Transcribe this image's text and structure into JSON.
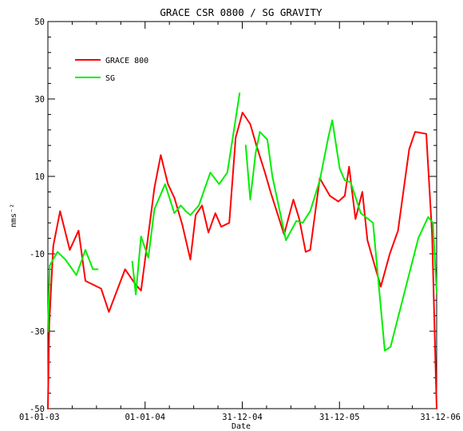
{
  "chart_data": {
    "type": "line",
    "title": "GRACE CSR 0800 / SG GRAVITY",
    "xlabel": "Date",
    "ylabel": "nms⁻²",
    "x_range": [
      "2003-01-01",
      "2006-12-31"
    ],
    "ylim": [
      -50,
      50
    ],
    "x_ticks": [
      {
        "label": "01-01-03",
        "date": "2003-01-01"
      },
      {
        "label": "01-01-04",
        "date": "2004-01-01"
      },
      {
        "label": "31-12-04",
        "date": "2004-12-31"
      },
      {
        "label": "31-12-05",
        "date": "2005-12-31"
      },
      {
        "label": "31-12-06",
        "date": "2006-12-31"
      }
    ],
    "y_ticks": [
      50,
      30,
      10,
      -10,
      -30,
      -50
    ],
    "legend_position": "top-left",
    "series": [
      {
        "name": "GRACE 800",
        "color": "#ff0000",
        "segments": [
          [
            [
              "2003-01-01",
              -50
            ],
            [
              "2003-01-06",
              -28
            ],
            [
              "2003-01-21",
              -8
            ],
            [
              "2003-02-16",
              1
            ],
            [
              "2003-03-24",
              -9
            ],
            [
              "2003-04-26",
              -4
            ],
            [
              "2003-05-22",
              -17
            ],
            [
              "2003-07-20",
              -19
            ],
            [
              "2003-08-18",
              -25
            ],
            [
              "2003-10-18",
              -14
            ],
            [
              "2003-11-27",
              -18
            ],
            [
              "2003-12-17",
              -19.5
            ],
            [
              "2004-02-05",
              7
            ],
            [
              "2004-02-29",
              15.5
            ],
            [
              "2004-03-27",
              8
            ],
            [
              "2004-04-20",
              4.5
            ],
            [
              "2004-05-20",
              -2.5
            ],
            [
              "2004-06-19",
              -11.5
            ],
            [
              "2004-07-09",
              0
            ],
            [
              "2004-08-02",
              2.5
            ],
            [
              "2004-08-26",
              -4.5
            ],
            [
              "2004-09-21",
              0.5
            ],
            [
              "2004-10-13",
              -3
            ],
            [
              "2004-11-12",
              -2
            ],
            [
              "2004-12-06",
              20
            ],
            [
              "2005-01-01",
              26.5
            ],
            [
              "2005-01-30",
              23.5
            ],
            [
              "2005-02-22",
              18
            ],
            [
              "2005-03-26",
              11
            ],
            [
              "2005-04-16",
              6
            ],
            [
              "2005-06-06",
              -5
            ],
            [
              "2005-07-11",
              4
            ],
            [
              "2005-08-02",
              -1
            ],
            [
              "2005-08-26",
              -9.5
            ],
            [
              "2005-09-12",
              -9
            ],
            [
              "2005-10-18",
              9.5
            ],
            [
              "2005-11-25",
              5
            ],
            [
              "2005-12-27",
              3.5
            ],
            [
              "2006-01-20",
              5
            ],
            [
              "2006-02-05",
              12.5
            ],
            [
              "2006-03-01",
              -1
            ],
            [
              "2006-03-27",
              6
            ],
            [
              "2006-04-15",
              -6.5
            ],
            [
              "2006-06-04",
              -18.5
            ],
            [
              "2006-07-08",
              -10
            ],
            [
              "2006-08-08",
              -4
            ],
            [
              "2006-09-19",
              17
            ],
            [
              "2006-10-11",
              21.5
            ],
            [
              "2006-11-22",
              21
            ],
            [
              "2006-12-14",
              -5
            ],
            [
              "2006-12-31",
              -50
            ]
          ]
        ]
      },
      {
        "name": "SG",
        "color": "#00ee00",
        "segments": [
          [
            [
              "2003-01-01",
              -30
            ],
            [
              "2003-01-08",
              -13
            ],
            [
              "2003-02-06",
              -9.5
            ],
            [
              "2003-03-08",
              -11.5
            ],
            [
              "2003-04-18",
              -15.5
            ],
            [
              "2003-05-22",
              -9
            ],
            [
              "2003-06-19",
              -14
            ],
            [
              "2003-07-07",
              -14
            ]
          ],
          [
            [
              "2003-11-14",
              -12
            ],
            [
              "2003-11-27",
              -20.5
            ],
            [
              "2003-12-17",
              -5.5
            ],
            [
              "2004-01-13",
              -11
            ],
            [
              "2004-02-05",
              1.5
            ],
            [
              "2004-03-16",
              8
            ],
            [
              "2004-04-20",
              0.5
            ],
            [
              "2004-05-14",
              2.5
            ],
            [
              "2004-06-02",
              1
            ],
            [
              "2004-06-19",
              0
            ],
            [
              "2004-07-21",
              2.5
            ],
            [
              "2004-09-02",
              11
            ],
            [
              "2004-10-05",
              8
            ],
            [
              "2004-11-05",
              11
            ],
            [
              "2004-12-21",
              31.5
            ]
          ],
          [
            [
              "2005-01-13",
              18
            ],
            [
              "2005-01-30",
              4
            ],
            [
              "2005-02-19",
              16
            ],
            [
              "2005-03-07",
              21.5
            ],
            [
              "2005-04-04",
              19.5
            ],
            [
              "2005-04-23",
              10
            ],
            [
              "2005-06-13",
              -6.5
            ],
            [
              "2005-07-22",
              -1.5
            ],
            [
              "2005-08-15",
              -2
            ],
            [
              "2005-09-12",
              1
            ],
            [
              "2005-10-18",
              9
            ],
            [
              "2005-11-19",
              20
            ],
            [
              "2005-12-04",
              24.5
            ],
            [
              "2006-01-01",
              12
            ],
            [
              "2006-01-20",
              9
            ],
            [
              "2006-02-11",
              8.5
            ],
            [
              "2006-03-21",
              0.5
            ],
            [
              "2006-05-06",
              -2
            ],
            [
              "2006-06-19",
              -35
            ],
            [
              "2006-07-11",
              -34
            ],
            [
              "2006-10-23",
              -6
            ],
            [
              "2006-11-29",
              -0.5
            ],
            [
              "2006-12-17",
              -2
            ],
            [
              "2006-12-31",
              -20
            ]
          ]
        ]
      }
    ]
  }
}
